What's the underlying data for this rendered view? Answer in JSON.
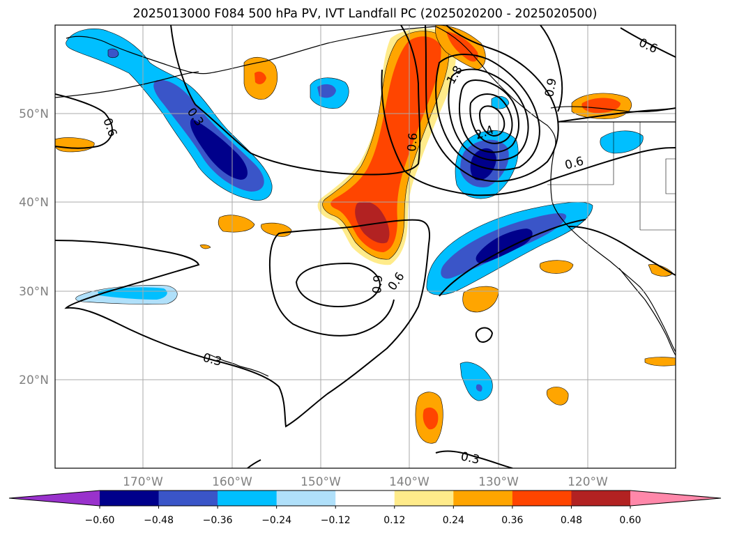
{
  "title": "2025013000 F084 500 hPa PV, IVT Landfall PC (2025020200 - 2025020500)",
  "map": {
    "lat_labels": [
      "50°N",
      "40°N",
      "30°N",
      "20°N"
    ],
    "lon_labels": [
      "170°W",
      "160°W",
      "150°W",
      "140°W",
      "130°W",
      "120°W"
    ],
    "contour_labels": [
      "0.6",
      "0.3",
      "0.6",
      "1.8",
      "0.9",
      "2.4",
      "0.6",
      "0.6",
      "0.9",
      "0.6",
      "0.3",
      "0.3"
    ],
    "gridlines": true
  },
  "colorbar": {
    "ticks": [
      "−0.60",
      "−0.48",
      "−0.36",
      "−0.24",
      "−0.12",
      "0.12",
      "0.24",
      "0.36",
      "0.48",
      "0.60"
    ],
    "colors": [
      "#9932cc",
      "#00008b",
      "#3a55c8",
      "#00bfff",
      "#b0e0fa",
      "#ffffff",
      "#ffeb8a",
      "#ffa500",
      "#ff4500",
      "#b22222",
      "#ff88aa"
    ]
  }
}
